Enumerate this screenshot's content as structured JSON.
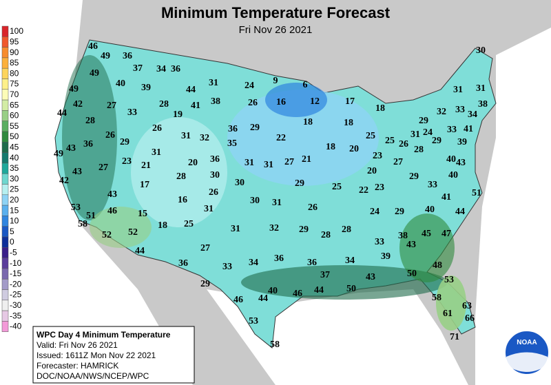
{
  "header": {
    "title": "Minimum Temperature Forecast",
    "subtitle": "Fri Nov 26 2021"
  },
  "legend": [
    {
      "label": 100,
      "color": "#d9252a"
    },
    {
      "label": 95,
      "color": "#f0582b"
    },
    {
      "label": 90,
      "color": "#f78c2c"
    },
    {
      "label": 85,
      "color": "#fcb03b"
    },
    {
      "label": 80,
      "color": "#fdd45c"
    },
    {
      "label": 75,
      "color": "#fef08a"
    },
    {
      "label": 70,
      "color": "#fdfcb8"
    },
    {
      "label": 65,
      "color": "#d3eca4"
    },
    {
      "label": 60,
      "color": "#98cf86"
    },
    {
      "label": 55,
      "color": "#5aae61"
    },
    {
      "label": 50,
      "color": "#2f8a3e"
    },
    {
      "label": 45,
      "color": "#1e6b4b"
    },
    {
      "label": 40,
      "color": "#157a6e"
    },
    {
      "label": 35,
      "color": "#1fa89b"
    },
    {
      "label": 30,
      "color": "#6ed7cf"
    },
    {
      "label": 25,
      "color": "#b6f0f0"
    },
    {
      "label": 20,
      "color": "#8ed3f5"
    },
    {
      "label": 15,
      "color": "#5ab0ee"
    },
    {
      "label": 10,
      "color": "#2f85e0"
    },
    {
      "label": 5,
      "color": "#1a58c4"
    },
    {
      "label": 0,
      "color": "#0e2f9a"
    },
    {
      "label": -5,
      "color": "#3a1f8a"
    },
    {
      "label": -10,
      "color": "#5b3d9c"
    },
    {
      "label": -15,
      "color": "#7a68ae"
    },
    {
      "label": -20,
      "color": "#a39bc8"
    },
    {
      "label": -25,
      "color": "#cfcbe0"
    },
    {
      "label": -30,
      "color": "#efefef"
    },
    {
      "label": -35,
      "color": "#e6c8e4"
    },
    {
      "label": -40,
      "color": "#f39ad8"
    }
  ],
  "info": {
    "title": "WPC Day 4 Minimum Temperature",
    "valid": "Valid: Fri Nov 26 2021",
    "issued": "Issued: 1611Z Mon Nov 22 2021",
    "forecaster": "Forecaster: HAMRICK",
    "agency": "DOC/NOAA/NWS/NCEP/WPC"
  },
  "logo": "NOAA",
  "temperatures": [
    46,
    49,
    36,
    37,
    34,
    36,
    49,
    31,
    9,
    6,
    24,
    40,
    39,
    44,
    49,
    38,
    12,
    17,
    26,
    16,
    42,
    27,
    28,
    41,
    18,
    44,
    33,
    19,
    28,
    18,
    18,
    29,
    32,
    33,
    34,
    38,
    31,
    31,
    30,
    36,
    29,
    26,
    41,
    33,
    24,
    31,
    26,
    29,
    31,
    32,
    22,
    25,
    25,
    26,
    35,
    18,
    20,
    29,
    28,
    39,
    49,
    43,
    36,
    31,
    23,
    27,
    21,
    27,
    31,
    31,
    36,
    20,
    40,
    43,
    27,
    23,
    21,
    30,
    28,
    20,
    43,
    42,
    30,
    29,
    29,
    40,
    17,
    25,
    22,
    23,
    33,
    26,
    43,
    51,
    41,
    16,
    30,
    31,
    26,
    53,
    46,
    31,
    51,
    15,
    24,
    29,
    40,
    44,
    58,
    18,
    25,
    31,
    32,
    29,
    28,
    28,
    52,
    52,
    45,
    47,
    38,
    43,
    33,
    27,
    44,
    39,
    34,
    36,
    34,
    36,
    33,
    36,
    48,
    50,
    37,
    43,
    53,
    50,
    29,
    40,
    46,
    44,
    46,
    44,
    58,
    63,
    61,
    66,
    53,
    71,
    58
  ]
}
